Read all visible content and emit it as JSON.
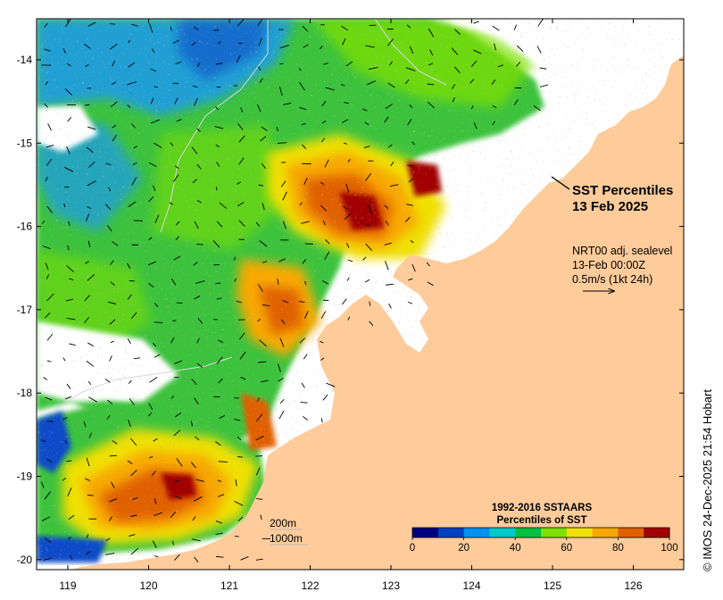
{
  "map": {
    "title_line1": "SST Percentiles",
    "title_line2": "13 Feb 2025",
    "current_line1": "NRT00 adj. sealevel",
    "current_line2": "13-Feb 00:00Z",
    "current_line3": "0.5m/s (1kt 24h)",
    "scale_line1": "200m",
    "scale_line2": "1000m",
    "credit": "© IMOS 24-Dec-2025 21:54 Hobart",
    "lon_ticks": [
      "119",
      "120",
      "121",
      "122",
      "123",
      "124",
      "125",
      "126"
    ],
    "lat_ticks": [
      "-14",
      "-15",
      "-16",
      "-17",
      "-18",
      "-19",
      "-20"
    ],
    "land_color": "#FECB9A"
  },
  "legend": {
    "title_line1": "1992-2016 SSTAARS",
    "title_line2": "Percentiles of SST",
    "ticks": [
      "0",
      "20",
      "40",
      "60",
      "80",
      "100"
    ],
    "colors": [
      "#000080",
      "#0040C0",
      "#0090F0",
      "#00C8C8",
      "#00C040",
      "#80E000",
      "#F0E000",
      "#F8A800",
      "#E06000",
      "#A00000"
    ]
  }
}
